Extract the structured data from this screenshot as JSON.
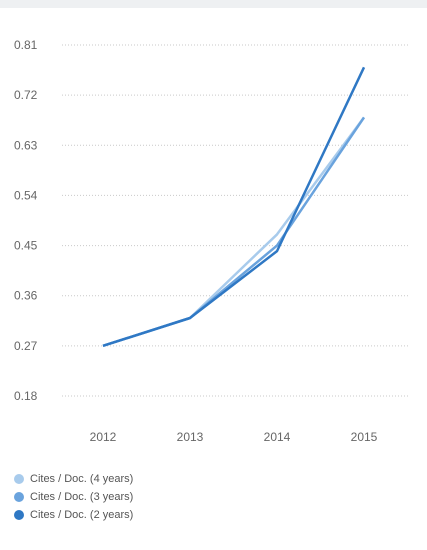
{
  "chart_data": {
    "type": "line",
    "x": [
      "2012",
      "2013",
      "2014",
      "2015"
    ],
    "y_ticks": [
      "0.81",
      "0.72",
      "0.63",
      "0.54",
      "0.45",
      "0.36",
      "0.27",
      "0.18"
    ],
    "ylim": [
      0.18,
      0.81
    ],
    "grid": true,
    "legend_position": "bottom-left",
    "series": [
      {
        "name": "Cites / Doc. (4 years)",
        "color": "#a8cbec",
        "values": [
          0.27,
          0.32,
          0.47,
          0.68
        ]
      },
      {
        "name": "Cites / Doc. (3 years)",
        "color": "#6aa3dd",
        "values": [
          0.27,
          0.32,
          0.45,
          0.68
        ]
      },
      {
        "name": "Cites / Doc. (2 years)",
        "color": "#2f78c4",
        "values": [
          0.27,
          0.32,
          0.44,
          0.77
        ]
      }
    ]
  }
}
